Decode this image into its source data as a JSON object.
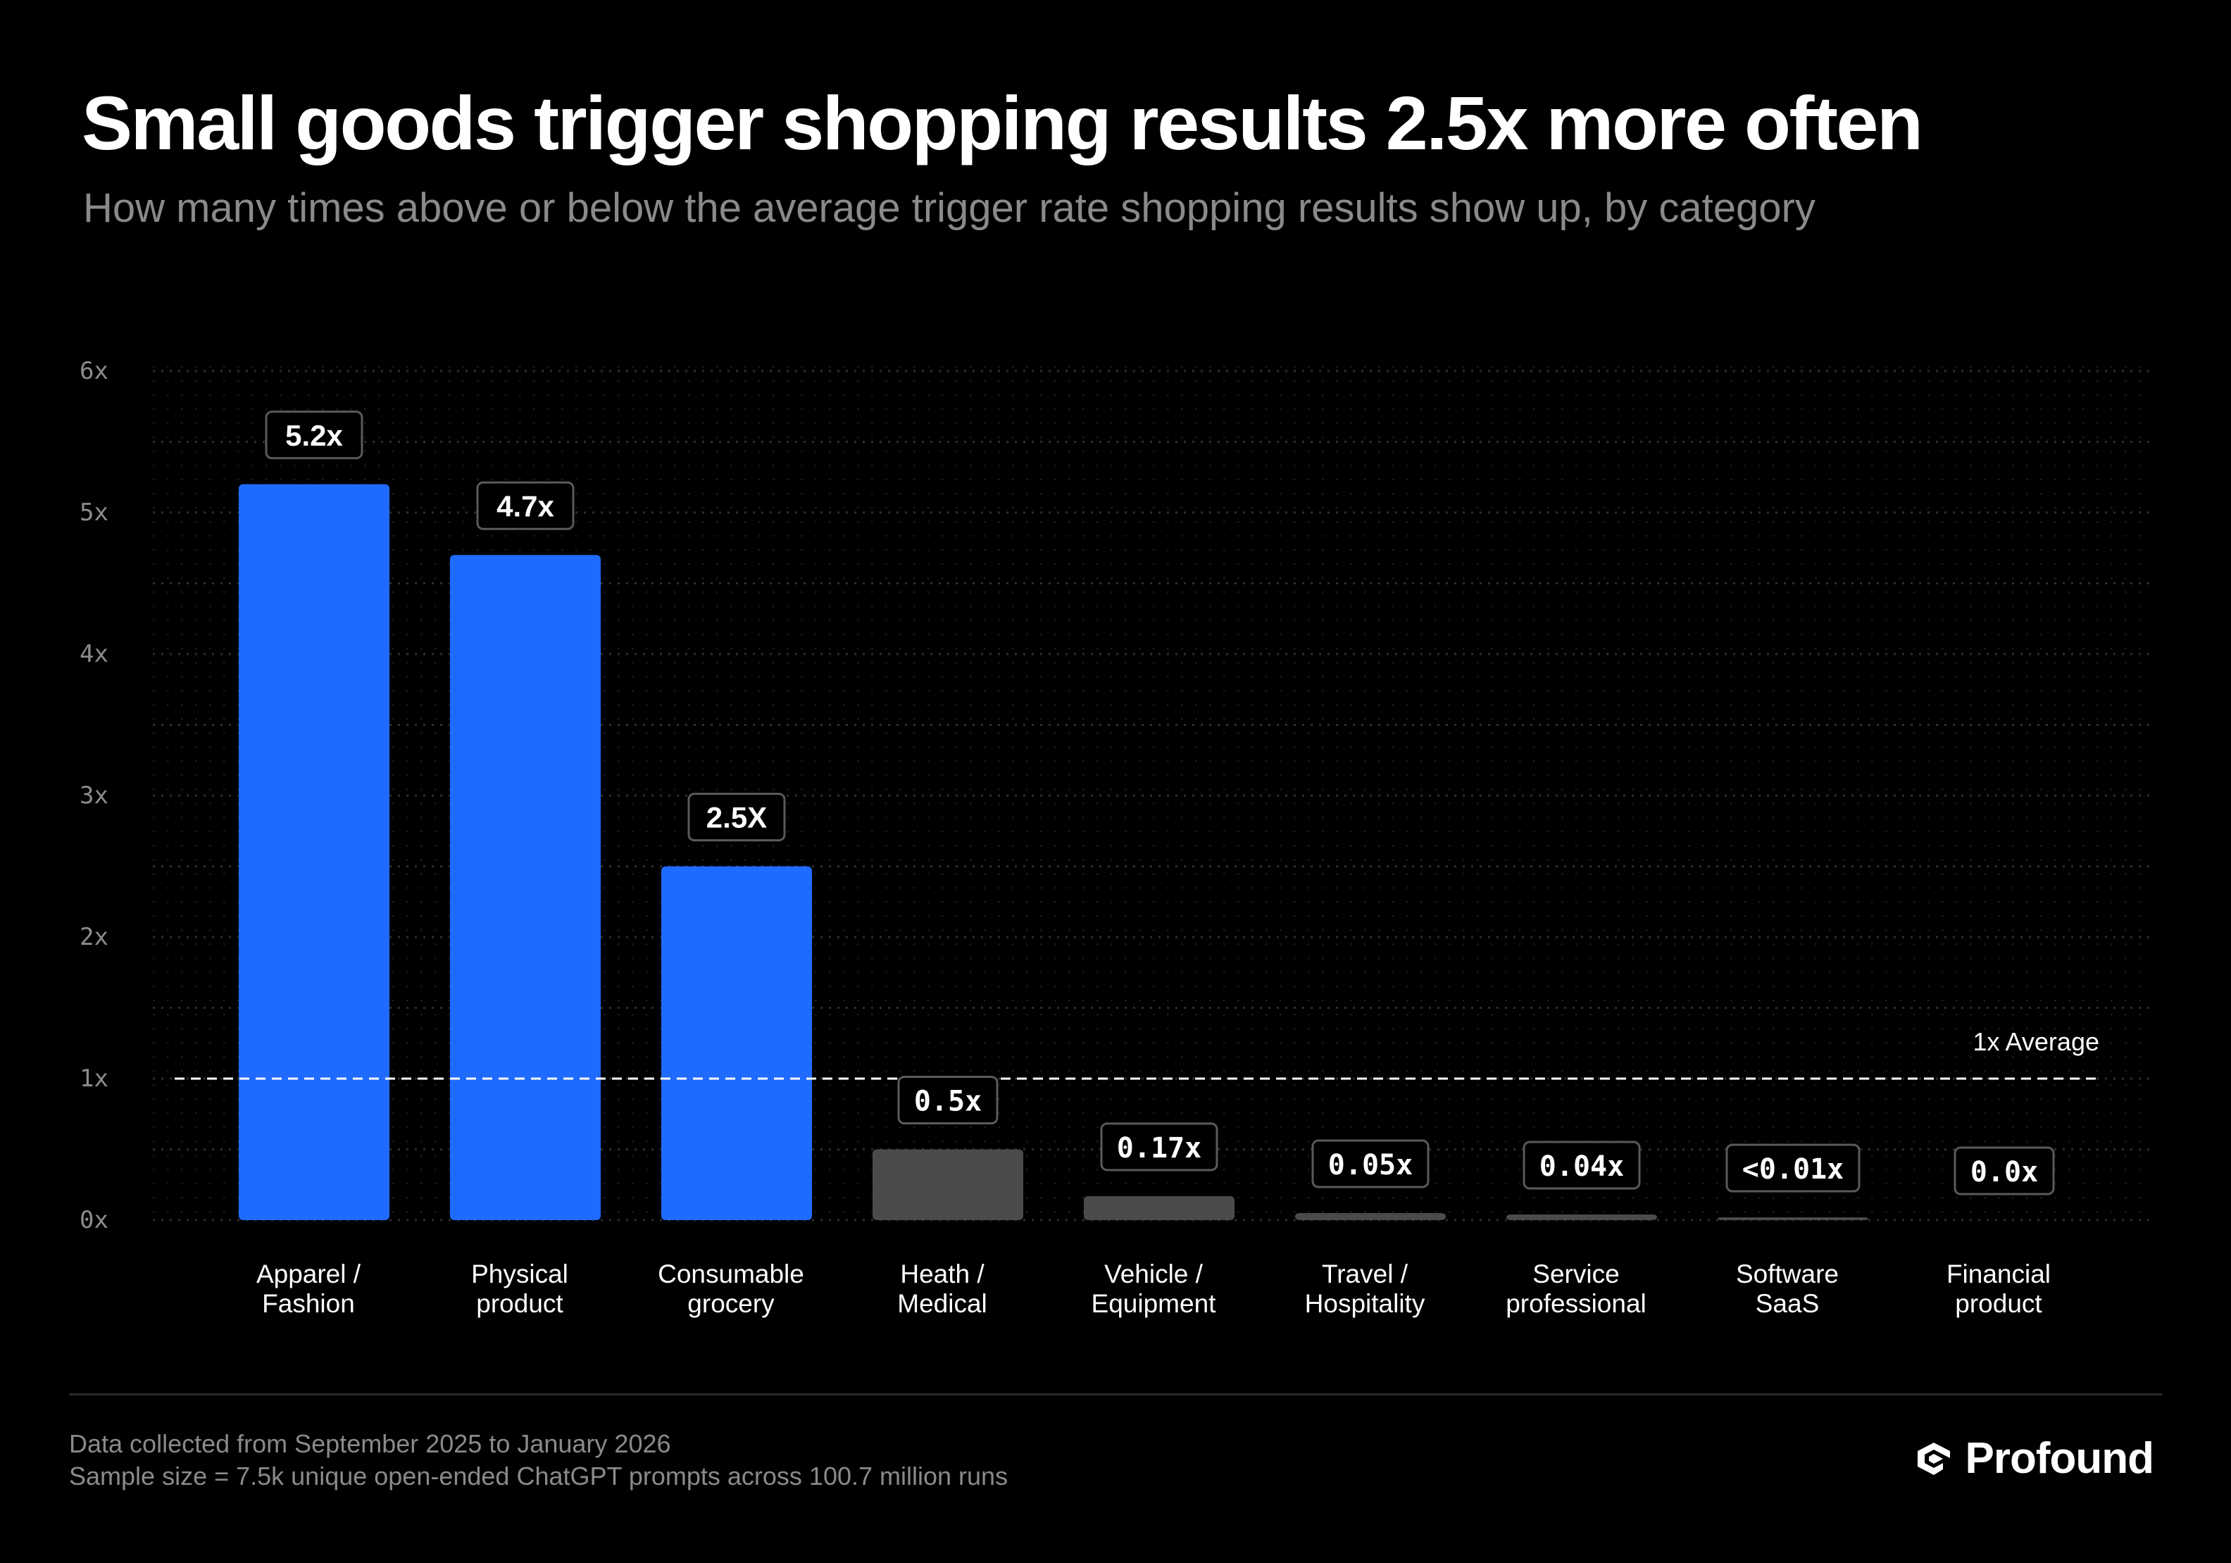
{
  "title": "Small goods trigger shopping results 2.5x more often",
  "subtitle": "How many times above or below the average trigger rate shopping results show up, by category",
  "footer": {
    "note_1": "Data collected from September 2025 to January 2026",
    "note_2": "Sample size = 7.5k unique open-ended ChatGPT prompts across 100.7 million runs",
    "brand": "Profound",
    "brand_icon": "profound-logo-icon"
  },
  "colors": {
    "background": "#000000",
    "bar_high": "#1f6bff",
    "bar_low": "#4b4b4b",
    "grid": "#2e2e2e",
    "axis_text": "#8c8c8c",
    "label_box_border": "#5a5a5a"
  },
  "chart_data": {
    "type": "bar",
    "title": "Small goods trigger shopping results 2.5x more often",
    "xlabel": "",
    "ylabel": "",
    "ylim": [
      0,
      6
    ],
    "grid": true,
    "yticks": [
      {
        "value": 0,
        "label": "0x"
      },
      {
        "value": 1,
        "label": "1x"
      },
      {
        "value": 2,
        "label": "2x"
      },
      {
        "value": 3,
        "label": "3x"
      },
      {
        "value": 4,
        "label": "4x"
      },
      {
        "value": 5,
        "label": "5x"
      },
      {
        "value": 6,
        "label": "6x"
      }
    ],
    "reference_line": {
      "value": 1,
      "label": "1x Average"
    },
    "bars": [
      {
        "category": [
          "Apparel /",
          "Fashion"
        ],
        "value": 5.2,
        "label": "5.2x",
        "highlight": true
      },
      {
        "category": [
          "Physical",
          "product"
        ],
        "value": 4.7,
        "label": "4.7x",
        "highlight": true
      },
      {
        "category": [
          "Consumable",
          "grocery"
        ],
        "value": 2.5,
        "label": "2.5X",
        "highlight": true
      },
      {
        "category": [
          "Heath /",
          "Medical"
        ],
        "value": 0.5,
        "label": "0.5x",
        "highlight": false
      },
      {
        "category": [
          "Vehicle /",
          "Equipment"
        ],
        "value": 0.17,
        "label": "0.17x",
        "highlight": false
      },
      {
        "category": [
          "Travel /",
          "Hospitality"
        ],
        "value": 0.05,
        "label": "0.05x",
        "highlight": false
      },
      {
        "category": [
          "Service",
          "professional"
        ],
        "value": 0.04,
        "label": "0.04x",
        "highlight": false
      },
      {
        "category": [
          "Software",
          "SaaS"
        ],
        "value": 0.01,
        "label": "<0.01x",
        "highlight": false
      },
      {
        "category": [
          "Financial",
          "product"
        ],
        "value": 0.0,
        "label": "0.0x",
        "highlight": false
      }
    ]
  }
}
